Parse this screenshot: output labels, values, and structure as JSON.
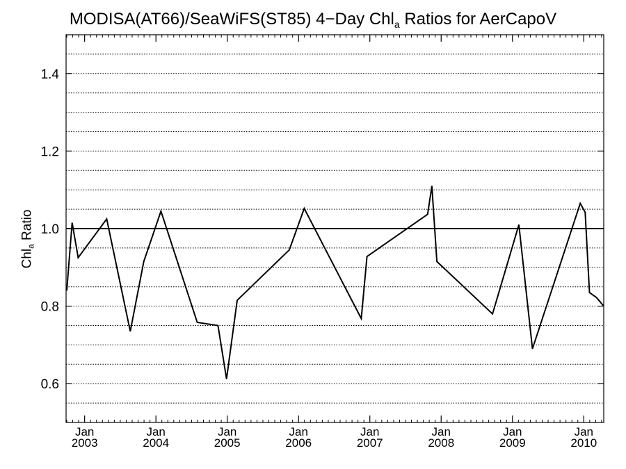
{
  "chart_data": {
    "type": "line",
    "title": {
      "prefix": "MODISA(AT66)/SeaWiFS(ST85) 4−Day Chl",
      "sub": "a",
      "suffix": " Ratios for AerCapoV"
    },
    "ylabel": {
      "prefix": "Chl",
      "sub": "a",
      "suffix": " Ratio"
    },
    "xlim": [
      2002.74,
      2010.28
    ],
    "ylim": [
      0.5,
      1.5
    ],
    "yticks": [
      0.6,
      0.8,
      1.0,
      1.2,
      1.4
    ],
    "ytick_labels": [
      "0.6",
      "0.8",
      "1.0",
      "1.2",
      "1.4"
    ],
    "ygrid_step": 0.05,
    "grid": true,
    "reference_line": 1.0,
    "xticks": [
      {
        "x": 2003.0,
        "month": "Jan",
        "year": "2003"
      },
      {
        "x": 2004.0,
        "month": "Jan",
        "year": "2004"
      },
      {
        "x": 2005.0,
        "month": "Jan",
        "year": "2005"
      },
      {
        "x": 2006.0,
        "month": "Jan",
        "year": "2006"
      },
      {
        "x": 2007.0,
        "month": "Jan",
        "year": "2007"
      },
      {
        "x": 2008.0,
        "month": "Jan",
        "year": "2008"
      },
      {
        "x": 2009.0,
        "month": "Jan",
        "year": "2009"
      },
      {
        "x": 2010.0,
        "month": "Jan",
        "year": "2010"
      }
    ],
    "series": [
      {
        "x": [
          2002.75,
          2002.825,
          2002.91,
          2003.31,
          2003.64,
          2003.83,
          2004.07,
          2004.58,
          2004.87,
          2004.99,
          2005.14,
          2005.87,
          2006.08,
          2006.88,
          2006.96,
          2007.81,
          2007.87,
          2007.94,
          2008.72,
          2009.09,
          2009.28,
          2009.95,
          2010.02,
          2010.08,
          2010.18,
          2010.28
        ],
        "y": [
          0.84,
          1.015,
          0.925,
          1.025,
          0.735,
          0.915,
          1.045,
          0.758,
          0.75,
          0.612,
          0.815,
          0.945,
          1.052,
          0.768,
          0.928,
          1.037,
          1.11,
          0.915,
          0.78,
          1.01,
          0.69,
          1.065,
          1.042,
          0.835,
          0.822,
          0.8
        ]
      }
    ],
    "colors": {
      "line": "#000000",
      "grid": "#000000",
      "background": "#ffffff"
    }
  }
}
